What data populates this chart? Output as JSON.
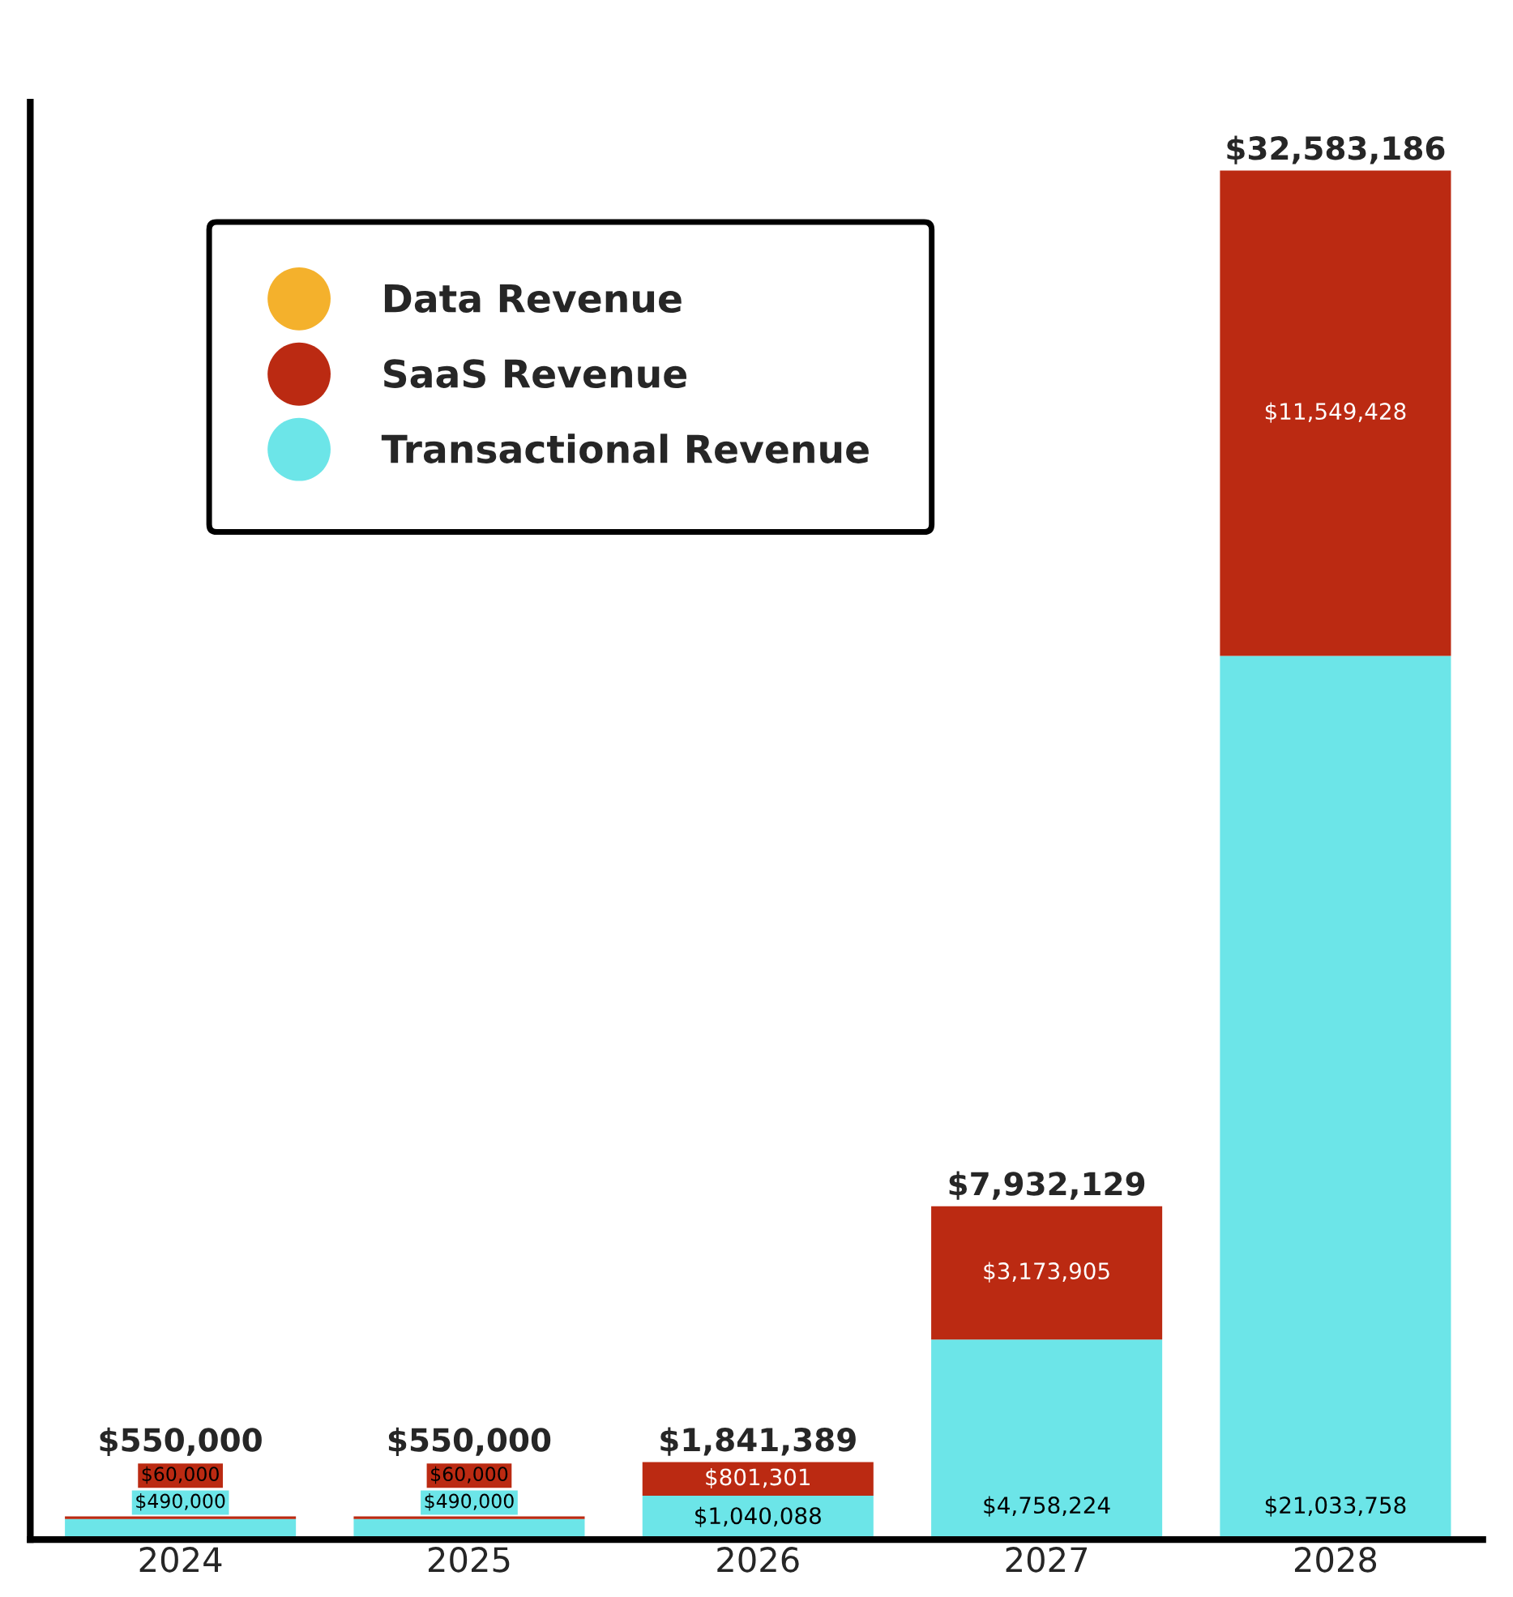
{
  "chart_data": {
    "type": "bar",
    "stacked": true,
    "categories": [
      "2024",
      "2025",
      "2026",
      "2027",
      "2028"
    ],
    "series": [
      {
        "name": "Transactional Revenue",
        "color": "#6ce5e8",
        "values": [
          490000,
          490000,
          1040088,
          4758224,
          21033758
        ],
        "value_labels": [
          "$490,000",
          "$490,000",
          "$1,040,088",
          "$4,758,224",
          "$21,033,758"
        ]
      },
      {
        "name": "SaaS Revenue",
        "color": "#bb2a12",
        "values": [
          60000,
          60000,
          801301,
          3173905,
          11549428
        ],
        "value_labels": [
          "$60,000",
          "$60,000",
          "$801,301",
          "$3,173,905",
          "$11,549,428"
        ]
      },
      {
        "name": "Data Revenue",
        "color": "#f4b12c",
        "values": [
          null,
          null,
          null,
          null,
          null
        ]
      }
    ],
    "totals": [
      "$550,000",
      "$550,000",
      "$1,841,389",
      "$7,932,129",
      "$32,583,186"
    ],
    "legend": "top left",
    "grid": false
  }
}
